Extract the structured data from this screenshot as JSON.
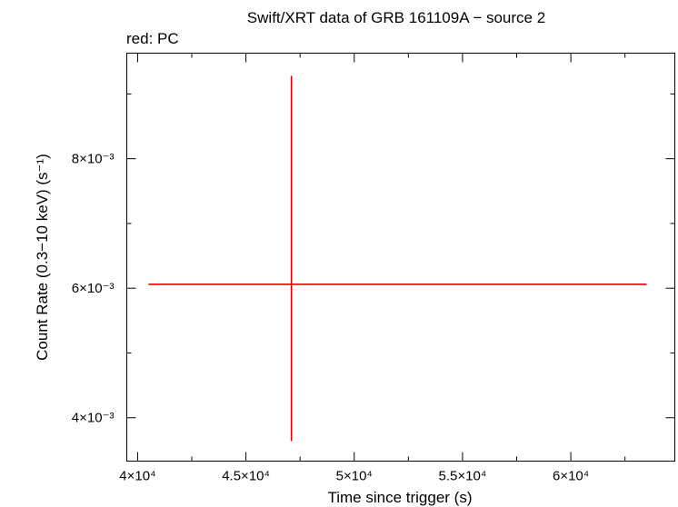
{
  "chart_data": {
    "type": "scatter",
    "title": "Swift/XRT data of GRB 161109A − source 2",
    "subtitle": "red: PC",
    "xlabel": "Time since trigger (s)",
    "ylabel": "Count Rate (0.3−10 keV) (s⁻¹)",
    "xlim": [
      39500,
      64800
    ],
    "ylim": [
      0.00333,
      0.00963
    ],
    "xscale": "linear",
    "yscale": "linear",
    "grid": false,
    "x_ticks": [
      {
        "value": 40000,
        "label": "4×10⁴"
      },
      {
        "value": 45000,
        "label": "4.5×10⁴"
      },
      {
        "value": 50000,
        "label": "5×10⁴"
      },
      {
        "value": 55000,
        "label": "5.5×10⁴"
      },
      {
        "value": 60000,
        "label": "6×10⁴"
      }
    ],
    "y_ticks": [
      {
        "value": 0.004,
        "label": "4×10⁻³"
      },
      {
        "value": 0.006,
        "label": "6×10⁻³"
      },
      {
        "value": 0.008,
        "label": "8×10⁻³"
      }
    ],
    "series": [
      {
        "color": "#dd0000",
        "points": [
          {
            "x": 47100,
            "x_low": 40500,
            "x_high": 63500,
            "y": 0.00606,
            "y_low": 0.00364,
            "y_high": 0.00928
          }
        ]
      }
    ]
  }
}
